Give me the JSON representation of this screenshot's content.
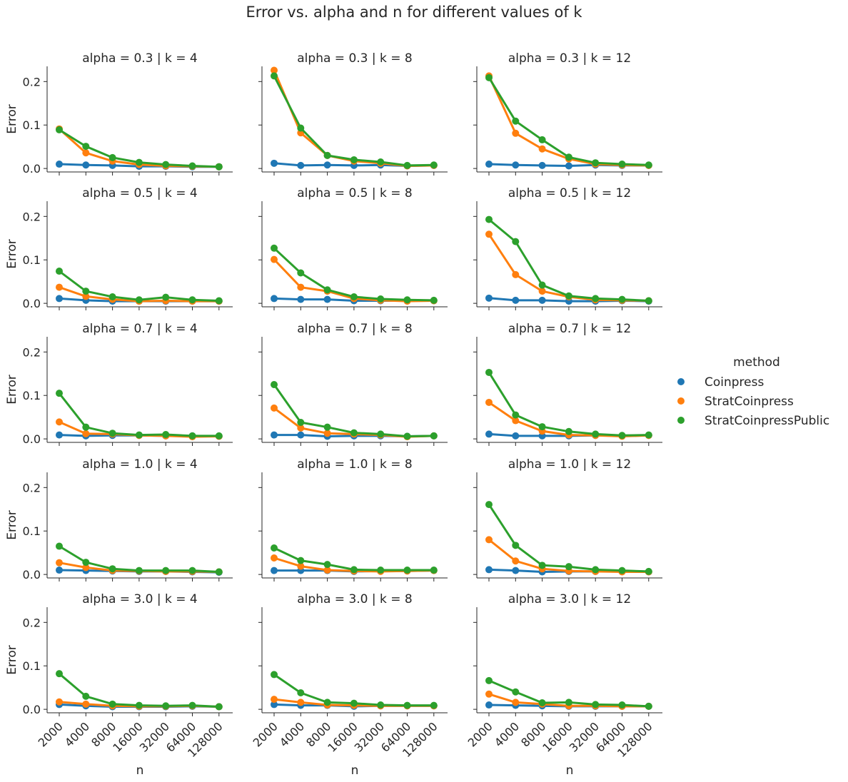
{
  "chart_data": {
    "type": "line",
    "title": "Error vs. alpha and n for different values of k",
    "xlabel": "n",
    "ylabel": "Error",
    "categories": [
      "2000",
      "4000",
      "8000",
      "16000",
      "32000",
      "64000",
      "128000"
    ],
    "ylim": [
      -0.008,
      0.235
    ],
    "yticks": [
      0.0,
      0.1,
      0.2
    ],
    "ytick_labels": [
      "0.0",
      "0.1",
      "0.2"
    ],
    "legend": {
      "title": "method",
      "placement": "right",
      "entries": [
        "Coinpress",
        "StratCoinpress",
        "StratCoinpressPublic"
      ]
    },
    "colors": {
      "Coinpress": "#1f77b4",
      "StratCoinpress": "#ff7f0e",
      "StratCoinpressPublic": "#2ca02c"
    },
    "panels": [
      {
        "title": "alpha = 0.3 | k = 4",
        "series": [
          {
            "name": "Coinpress",
            "values": [
              0.01,
              0.008,
              0.007,
              0.005,
              0.005,
              0.004,
              0.004
            ]
          },
          {
            "name": "StratCoinpress",
            "values": [
              0.091,
              0.036,
              0.017,
              0.009,
              0.006,
              0.005,
              0.004
            ]
          },
          {
            "name": "StratCoinpressPublic",
            "values": [
              0.089,
              0.051,
              0.025,
              0.014,
              0.009,
              0.006,
              0.004
            ]
          }
        ]
      },
      {
        "title": "alpha = 0.3 | k = 8",
        "series": [
          {
            "name": "Coinpress",
            "values": [
              0.012,
              0.007,
              0.008,
              0.007,
              0.008,
              0.006,
              0.007
            ]
          },
          {
            "name": "StratCoinpress",
            "values": [
              0.226,
              0.082,
              0.03,
              0.017,
              0.012,
              0.006,
              0.007
            ]
          },
          {
            "name": "StratCoinpressPublic",
            "values": [
              0.213,
              0.093,
              0.03,
              0.02,
              0.015,
              0.007,
              0.008
            ]
          }
        ]
      },
      {
        "title": "alpha = 0.3 | k = 12",
        "series": [
          {
            "name": "Coinpress",
            "values": [
              0.01,
              0.008,
              0.007,
              0.006,
              0.008,
              0.007,
              0.007
            ]
          },
          {
            "name": "StratCoinpress",
            "values": [
              0.213,
              0.081,
              0.045,
              0.022,
              0.01,
              0.008,
              0.007
            ]
          },
          {
            "name": "StratCoinpressPublic",
            "values": [
              0.209,
              0.109,
              0.066,
              0.026,
              0.013,
              0.01,
              0.008
            ]
          }
        ]
      },
      {
        "title": "alpha = 0.5 | k = 4",
        "series": [
          {
            "name": "Coinpress",
            "values": [
              0.011,
              0.007,
              0.005,
              0.005,
              0.005,
              0.005,
              0.005
            ]
          },
          {
            "name": "StratCoinpress",
            "values": [
              0.037,
              0.016,
              0.009,
              0.005,
              0.006,
              0.005,
              0.005
            ]
          },
          {
            "name": "StratCoinpressPublic",
            "values": [
              0.074,
              0.028,
              0.015,
              0.008,
              0.014,
              0.008,
              0.006
            ]
          }
        ]
      },
      {
        "title": "alpha = 0.5 | k = 8",
        "series": [
          {
            "name": "Coinpress",
            "values": [
              0.011,
              0.009,
              0.009,
              0.006,
              0.006,
              0.006,
              0.006
            ]
          },
          {
            "name": "StratCoinpress",
            "values": [
              0.101,
              0.037,
              0.028,
              0.011,
              0.007,
              0.005,
              0.006
            ]
          },
          {
            "name": "StratCoinpressPublic",
            "values": [
              0.127,
              0.07,
              0.031,
              0.015,
              0.01,
              0.008,
              0.007
            ]
          }
        ]
      },
      {
        "title": "alpha = 0.5 | k = 12",
        "series": [
          {
            "name": "Coinpress",
            "values": [
              0.012,
              0.007,
              0.007,
              0.005,
              0.005,
              0.006,
              0.005
            ]
          },
          {
            "name": "StratCoinpress",
            "values": [
              0.159,
              0.066,
              0.028,
              0.015,
              0.008,
              0.007,
              0.006
            ]
          },
          {
            "name": "StratCoinpressPublic",
            "values": [
              0.193,
              0.142,
              0.042,
              0.017,
              0.011,
              0.009,
              0.006
            ]
          }
        ]
      },
      {
        "title": "alpha = 0.7 | k = 4",
        "series": [
          {
            "name": "Coinpress",
            "values": [
              0.009,
              0.007,
              0.008,
              0.008,
              0.007,
              0.007,
              0.006
            ]
          },
          {
            "name": "StratCoinpress",
            "values": [
              0.039,
              0.012,
              0.011,
              0.008,
              0.007,
              0.005,
              0.006
            ]
          },
          {
            "name": "StratCoinpressPublic",
            "values": [
              0.105,
              0.027,
              0.013,
              0.009,
              0.01,
              0.007,
              0.007
            ]
          }
        ]
      },
      {
        "title": "alpha = 0.7 | k = 8",
        "series": [
          {
            "name": "Coinpress",
            "values": [
              0.009,
              0.009,
              0.006,
              0.007,
              0.007,
              0.006,
              0.007
            ]
          },
          {
            "name": "StratCoinpress",
            "values": [
              0.071,
              0.025,
              0.013,
              0.011,
              0.009,
              0.005,
              0.007
            ]
          },
          {
            "name": "StratCoinpressPublic",
            "values": [
              0.125,
              0.038,
              0.027,
              0.014,
              0.011,
              0.006,
              0.007
            ]
          }
        ]
      },
      {
        "title": "alpha = 0.7 | k = 12",
        "series": [
          {
            "name": "Coinpress",
            "values": [
              0.011,
              0.007,
              0.007,
              0.007,
              0.008,
              0.007,
              0.008
            ]
          },
          {
            "name": "StratCoinpress",
            "values": [
              0.084,
              0.042,
              0.018,
              0.009,
              0.008,
              0.006,
              0.008
            ]
          },
          {
            "name": "StratCoinpressPublic",
            "values": [
              0.153,
              0.055,
              0.028,
              0.017,
              0.011,
              0.008,
              0.009
            ]
          }
        ]
      },
      {
        "title": "alpha = 1.0 | k = 4",
        "series": [
          {
            "name": "Coinpress",
            "values": [
              0.01,
              0.009,
              0.008,
              0.007,
              0.007,
              0.006,
              0.005
            ]
          },
          {
            "name": "StratCoinpress",
            "values": [
              0.027,
              0.016,
              0.009,
              0.008,
              0.007,
              0.007,
              0.006
            ]
          },
          {
            "name": "StratCoinpressPublic",
            "values": [
              0.065,
              0.028,
              0.013,
              0.009,
              0.009,
              0.009,
              0.006
            ]
          }
        ]
      },
      {
        "title": "alpha = 1.0 | k = 8",
        "series": [
          {
            "name": "Coinpress",
            "values": [
              0.009,
              0.009,
              0.009,
              0.007,
              0.008,
              0.008,
              0.009
            ]
          },
          {
            "name": "StratCoinpress",
            "values": [
              0.038,
              0.019,
              0.01,
              0.008,
              0.007,
              0.008,
              0.009
            ]
          },
          {
            "name": "StratCoinpressPublic",
            "values": [
              0.061,
              0.032,
              0.023,
              0.011,
              0.01,
              0.01,
              0.01
            ]
          }
        ]
      },
      {
        "title": "alpha = 1.0 | k = 12",
        "series": [
          {
            "name": "Coinpress",
            "values": [
              0.011,
              0.009,
              0.006,
              0.007,
              0.007,
              0.007,
              0.006
            ]
          },
          {
            "name": "StratCoinpress",
            "values": [
              0.08,
              0.031,
              0.013,
              0.008,
              0.007,
              0.006,
              0.006
            ]
          },
          {
            "name": "StratCoinpressPublic",
            "values": [
              0.161,
              0.067,
              0.021,
              0.018,
              0.011,
              0.009,
              0.007
            ]
          }
        ]
      },
      {
        "title": "alpha = 3.0 | k = 4",
        "series": [
          {
            "name": "Coinpress",
            "values": [
              0.011,
              0.008,
              0.006,
              0.006,
              0.006,
              0.007,
              0.006
            ]
          },
          {
            "name": "StratCoinpress",
            "values": [
              0.017,
              0.012,
              0.008,
              0.007,
              0.007,
              0.008,
              0.006
            ]
          },
          {
            "name": "StratCoinpressPublic",
            "values": [
              0.082,
              0.03,
              0.012,
              0.009,
              0.008,
              0.009,
              0.006
            ]
          }
        ]
      },
      {
        "title": "alpha = 3.0 | k = 8",
        "series": [
          {
            "name": "Coinpress",
            "values": [
              0.011,
              0.009,
              0.009,
              0.007,
              0.008,
              0.008,
              0.008
            ]
          },
          {
            "name": "StratCoinpress",
            "values": [
              0.023,
              0.016,
              0.01,
              0.009,
              0.008,
              0.008,
              0.008
            ]
          },
          {
            "name": "StratCoinpressPublic",
            "values": [
              0.08,
              0.038,
              0.016,
              0.014,
              0.01,
              0.009,
              0.009
            ]
          }
        ]
      },
      {
        "title": "alpha = 3.0 | k = 12",
        "series": [
          {
            "name": "Coinpress",
            "values": [
              0.01,
              0.009,
              0.008,
              0.007,
              0.007,
              0.007,
              0.007
            ]
          },
          {
            "name": "StratCoinpress",
            "values": [
              0.035,
              0.016,
              0.012,
              0.008,
              0.008,
              0.007,
              0.007
            ]
          },
          {
            "name": "StratCoinpressPublic",
            "values": [
              0.066,
              0.04,
              0.015,
              0.016,
              0.011,
              0.01,
              0.007
            ]
          }
        ]
      }
    ]
  }
}
